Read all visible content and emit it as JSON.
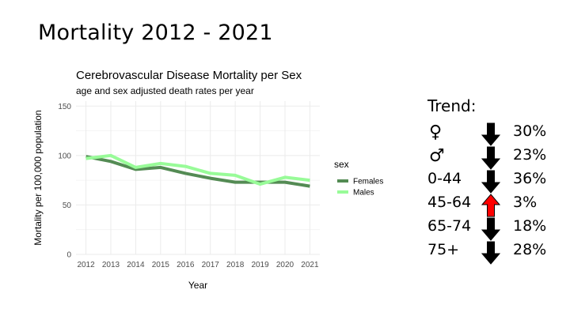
{
  "slide": {
    "title": "Mortality 2012 - 2021"
  },
  "chart_data": {
    "type": "line",
    "title": "Cerebrovascular Disease Mortality per Sex",
    "subtitle": "age and sex adjusted death rates per year",
    "xlabel": "Year",
    "ylabel": "Mortality per 100,000 population",
    "x": [
      2012,
      2013,
      2014,
      2015,
      2016,
      2017,
      2018,
      2019,
      2020,
      2021
    ],
    "ylim": [
      0,
      155
    ],
    "yticks": [
      0,
      50,
      100,
      150
    ],
    "grid": true,
    "legend_title": "sex",
    "legend_position": "right",
    "series": [
      {
        "name": "Females",
        "color": "#548b54",
        "values": [
          99,
          94,
          86,
          88,
          82,
          77,
          73,
          73,
          73,
          69
        ]
      },
      {
        "name": "Males",
        "color": "#98fb98",
        "values": [
          97,
          100,
          88,
          92,
          89,
          82,
          80,
          71,
          78,
          75
        ]
      }
    ]
  },
  "trend": {
    "title": "Trend:",
    "rows": [
      {
        "label": "♀",
        "symbol": true,
        "direction": "down",
        "pct": "30%"
      },
      {
        "label": "♂",
        "symbol": true,
        "direction": "down",
        "pct": "23%"
      },
      {
        "label": "0-44",
        "symbol": false,
        "direction": "down",
        "pct": "36%"
      },
      {
        "label": "45-64",
        "symbol": false,
        "direction": "up",
        "pct": "3%"
      },
      {
        "label": "65-74",
        "symbol": false,
        "direction": "down",
        "pct": "18%"
      },
      {
        "label": "75+",
        "symbol": false,
        "direction": "down",
        "pct": "28%"
      }
    ],
    "colors": {
      "down": "#000000",
      "up": "#ff0000"
    }
  }
}
